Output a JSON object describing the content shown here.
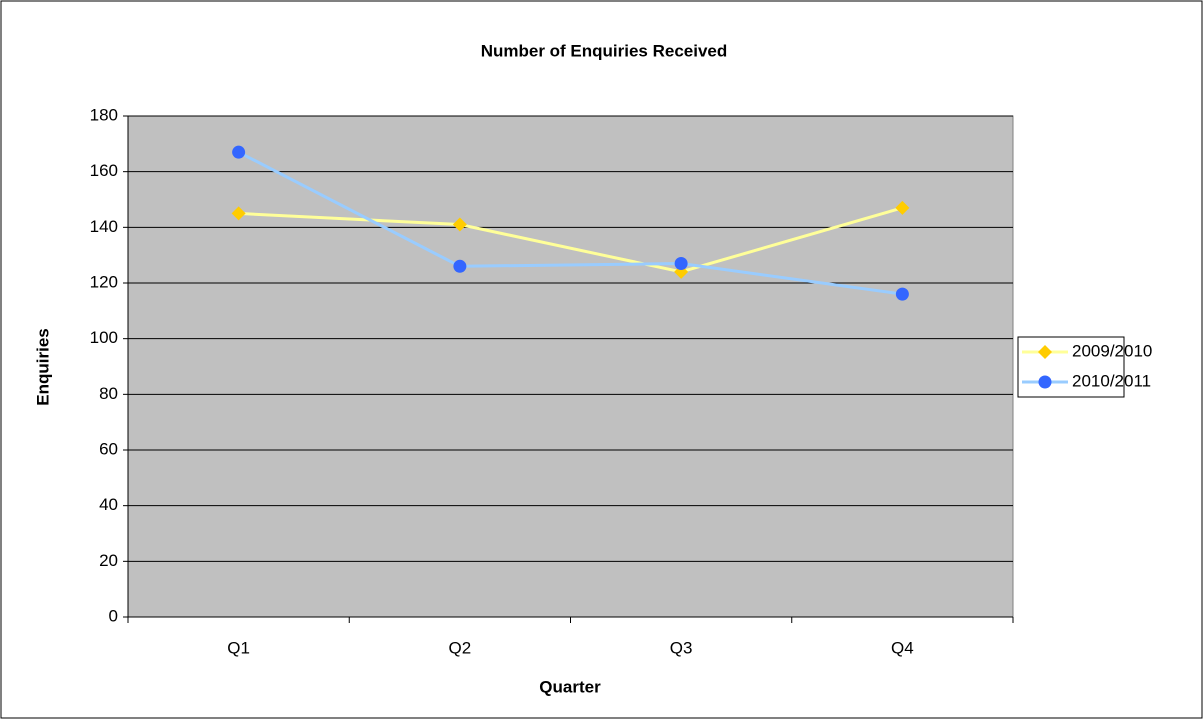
{
  "chart_data": {
    "type": "line",
    "title": "Number of Enquiries Received",
    "x_label": "Quarter",
    "y_label": "Enquiries",
    "categories": [
      "Q1",
      "Q2",
      "Q3",
      "Q4"
    ],
    "series": [
      {
        "name": "2009/2010",
        "color": "#ffff99",
        "marker_color": "#ffcc00",
        "marker": "diamond",
        "values": [
          145,
          141,
          124,
          147
        ]
      },
      {
        "name": "2010/2011",
        "color": "#99ccff",
        "marker_color": "#3366ff",
        "marker": "circle",
        "values": [
          167,
          126,
          127,
          116
        ]
      }
    ],
    "ylim": [
      0,
      180
    ],
    "yticks": [
      0,
      20,
      40,
      60,
      80,
      100,
      120,
      140,
      160,
      180
    ],
    "grid": true,
    "legend": "right",
    "plot_background": "#c0c0c0"
  }
}
